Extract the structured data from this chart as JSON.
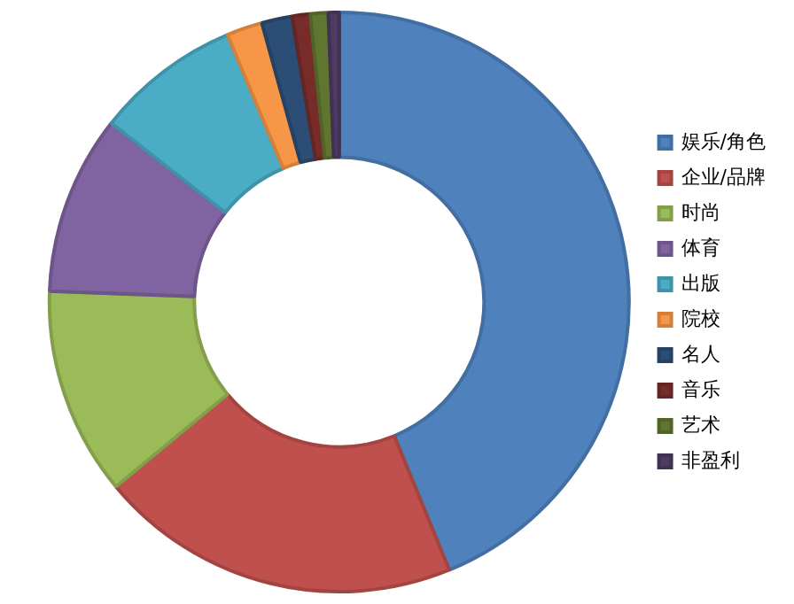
{
  "chart_data": {
    "type": "donut",
    "categories": [
      "娱乐/角色",
      "企业/品牌",
      "时尚",
      "体育",
      "出版",
      "院校",
      "名人",
      "音乐",
      "艺术",
      "非盈利"
    ],
    "values": [
      43.8,
      20.2,
      11.6,
      10,
      8.1,
      2,
      1.7,
      1,
      1,
      0.6
    ],
    "colors": [
      "#4f81bd",
      "#c0504d",
      "#9bbb59",
      "#8064a2",
      "#4bacc6",
      "#f79646",
      "#2c4d75",
      "#772c2a",
      "#5f7530",
      "#4d3b62"
    ],
    "legend": "right"
  }
}
